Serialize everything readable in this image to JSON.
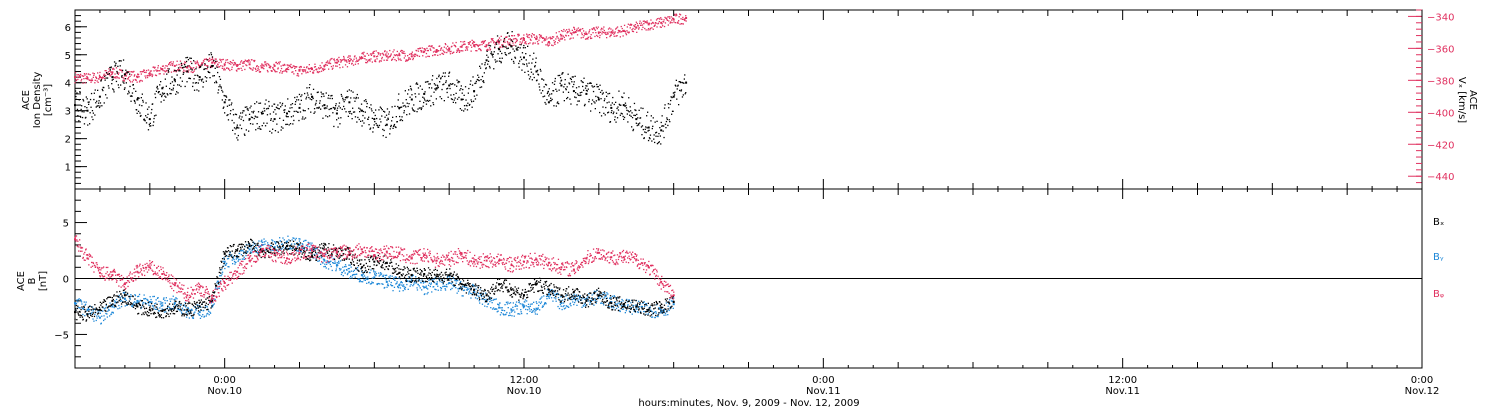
{
  "colors": {
    "black": "#000000",
    "pink": "#e0305f",
    "blue": "#1e88d8"
  },
  "xaxis": {
    "label": "hours:minutes, Nov.  9, 2009 - Nov. 12, 2009",
    "range_hours": [
      -6,
      48
    ],
    "ticks": [
      {
        "h": 0,
        "time": "0:00",
        "date": "Nov.10"
      },
      {
        "h": 12,
        "time": "12:00",
        "date": "Nov.10"
      },
      {
        "h": 24,
        "time": "0:00",
        "date": "Nov.11"
      },
      {
        "h": 36,
        "time": "12:00",
        "date": "Nov.11"
      },
      {
        "h": 48,
        "time": "0:00",
        "date": "Nov.12"
      }
    ]
  },
  "chart_data": [
    {
      "type": "scatter",
      "left_axis": {
        "label_lines": [
          "ACE",
          "Ion Density",
          "[cm⁻³]"
        ],
        "range": [
          0.2,
          6.6
        ],
        "ticks": [
          1,
          2,
          3,
          4,
          5,
          6
        ]
      },
      "right_axis": {
        "label_lines": [
          "ACE",
          "Vₓ [km/s]"
        ],
        "range": [
          -448,
          -336
        ],
        "ticks": [
          -440,
          -420,
          -400,
          -380,
          -360,
          -340
        ]
      },
      "series": [
        {
          "color": "black",
          "axis": "left",
          "x": [
            -6,
            -5.5,
            -5,
            -4.5,
            -4,
            -3.5,
            -3,
            -2.5,
            -2,
            -1.5,
            -1,
            -0.5,
            0,
            0.5,
            1,
            1.5,
            2,
            2.5,
            3,
            3.5,
            4,
            4.5,
            5,
            5.5,
            6,
            6.5,
            7,
            7.5,
            8,
            8.5,
            9,
            9.5,
            10,
            10.5,
            11,
            11.5,
            12,
            12.5,
            13,
            13.5,
            14,
            14.5,
            15,
            15.5,
            16,
            16.5,
            17,
            17.5,
            18,
            18.5
          ],
          "y": [
            3.2,
            3.0,
            3.5,
            4.2,
            4.3,
            3.4,
            2.7,
            3.8,
            4.1,
            4.4,
            4.2,
            4.6,
            3.3,
            2.4,
            2.7,
            2.9,
            2.7,
            2.9,
            3.1,
            3.5,
            3.2,
            2.9,
            3.3,
            3.0,
            2.7,
            2.5,
            3.1,
            3.4,
            3.6,
            3.8,
            3.9,
            3.4,
            3.7,
            4.8,
            5.2,
            5.3,
            4.9,
            4.4,
            3.3,
            3.9,
            3.7,
            3.6,
            3.4,
            3.1,
            3.2,
            2.7,
            2.4,
            2.3,
            3.5,
            4.0
          ]
        },
        {
          "color": "pink",
          "axis": "right",
          "x": [
            -6,
            -5.5,
            -5,
            -4.5,
            -4,
            -3.5,
            -3,
            -2.5,
            -2,
            -1.5,
            -1,
            -0.5,
            0,
            0.5,
            1,
            1.5,
            2,
            2.5,
            3,
            3.5,
            4,
            4.5,
            5,
            5.5,
            6,
            6.5,
            7,
            7.5,
            8,
            8.5,
            9,
            9.5,
            10,
            10.5,
            11,
            11.5,
            12,
            12.5,
            13,
            13.5,
            14,
            14.5,
            15,
            15.5,
            16,
            16.5,
            17,
            17.5,
            18,
            18.5
          ],
          "y": [
            -378,
            -379,
            -378,
            -375,
            -377,
            -378,
            -376,
            -373,
            -371,
            -372,
            -371,
            -369,
            -370,
            -371,
            -370,
            -372,
            -371,
            -373,
            -374,
            -373,
            -371,
            -369,
            -368,
            -366,
            -365,
            -365,
            -364,
            -365,
            -362,
            -361,
            -360,
            -359,
            -358,
            -358,
            -356,
            -355,
            -354,
            -354,
            -356,
            -352,
            -350,
            -351,
            -350,
            -350,
            -349,
            -347,
            -345,
            -344,
            -342,
            -341
          ]
        }
      ]
    },
    {
      "type": "scatter",
      "left_axis": {
        "label_lines": [
          "ACE",
          "B",
          "[nT]"
        ],
        "range": [
          -8,
          8
        ],
        "ticks": [
          -5,
          0,
          5
        ]
      },
      "legend": [
        "Bₓ",
        "Bᵧ",
        "Bᵩ"
      ],
      "legend_placement": "right",
      "zero_line": true,
      "series": [
        {
          "color": "black",
          "x": [
            -6,
            -5.5,
            -5,
            -4.5,
            -4,
            -3.5,
            -3,
            -2.5,
            -2,
            -1.5,
            -1,
            -0.5,
            0,
            0.5,
            1,
            1.5,
            2,
            2.5,
            3,
            3.5,
            4,
            4.5,
            5,
            5.5,
            6,
            6.5,
            7,
            7.5,
            8,
            8.5,
            9,
            9.5,
            10,
            10.5,
            11,
            11.5,
            12,
            12.5,
            13,
            13.5,
            14,
            14.5,
            15,
            15.5,
            16,
            16.5,
            17,
            17.5,
            18
          ],
          "y": [
            -3.0,
            -3.2,
            -2.8,
            -2.0,
            -1.5,
            -2.5,
            -2.8,
            -2.9,
            -2.6,
            -2.8,
            -2.5,
            -2.0,
            2.2,
            2.5,
            2.9,
            2.4,
            2.6,
            2.9,
            2.6,
            2.0,
            2.6,
            2.3,
            2.1,
            1.0,
            1.5,
            1.4,
            0.5,
            0.3,
            0.4,
            0.2,
            0.3,
            -0.5,
            -1.0,
            -1.5,
            -0.5,
            -1.0,
            -1.5,
            -0.5,
            -1.0,
            -1.5,
            -1.2,
            -2.0,
            -1.5,
            -2.2,
            -2.3,
            -2.5,
            -2.8,
            -2.6,
            -2.1
          ]
        },
        {
          "color": "blue",
          "x": [
            -6,
            -5.5,
            -5,
            -4.5,
            -4,
            -3.5,
            -3,
            -2.5,
            -2,
            -1.5,
            -1,
            -0.5,
            0,
            0.5,
            1,
            1.5,
            2,
            2.5,
            3,
            3.5,
            4,
            4.5,
            5,
            5.5,
            6,
            6.5,
            7,
            7.5,
            8,
            8.5,
            9,
            9.5,
            10,
            10.5,
            11,
            11.5,
            12,
            12.5,
            13,
            13.5,
            14,
            14.5,
            15,
            15.5,
            16,
            16.5,
            17,
            17.5,
            18
          ],
          "y": [
            -2.2,
            -2.8,
            -3.5,
            -2.5,
            -1.8,
            -2.0,
            -2.1,
            -2.4,
            -2.2,
            -2.9,
            -3.0,
            -2.5,
            1.5,
            2.0,
            2.6,
            3.0,
            2.8,
            3.3,
            3.0,
            2.6,
            1.6,
            1.2,
            0.6,
            0.3,
            0.1,
            -0.3,
            -0.6,
            -0.2,
            -0.8,
            -0.5,
            -0.4,
            -0.9,
            -1.2,
            -2.0,
            -2.6,
            -2.8,
            -2.5,
            -2.7,
            -1.4,
            -2.2,
            -1.8,
            -2.0,
            -1.6,
            -2.1,
            -2.4,
            -2.6,
            -2.8,
            -2.9,
            -2.3
          ]
        },
        {
          "color": "pink",
          "x": [
            -6,
            -5.5,
            -5,
            -4.5,
            -4,
            -3.5,
            -3,
            -2.5,
            -2,
            -1.5,
            -1,
            -0.5,
            0,
            0.5,
            1,
            1.5,
            2,
            2.5,
            3,
            3.5,
            4,
            4.5,
            5,
            5.5,
            6,
            6.5,
            7,
            7.5,
            8,
            8.5,
            9,
            9.5,
            10,
            10.5,
            11,
            11.5,
            12,
            12.5,
            13,
            13.5,
            14,
            14.5,
            15,
            15.5,
            16,
            16.5,
            17,
            17.5,
            18
          ],
          "y": [
            3.5,
            1.8,
            0.5,
            0.3,
            -0.5,
            0.6,
            1.0,
            0.4,
            -0.6,
            -1.5,
            -0.8,
            -1.8,
            -0.4,
            0.6,
            1.6,
            2.6,
            2.1,
            1.8,
            2.3,
            2.5,
            2.0,
            2.4,
            2.3,
            2.6,
            2.1,
            2.4,
            2.2,
            1.8,
            2.1,
            1.6,
            1.7,
            2.2,
            1.5,
            1.6,
            1.6,
            1.2,
            1.5,
            1.7,
            1.4,
            1.0,
            0.8,
            1.8,
            2.3,
            1.9,
            1.9,
            1.7,
            1.0,
            -0.3,
            -1.5
          ]
        }
      ]
    }
  ]
}
